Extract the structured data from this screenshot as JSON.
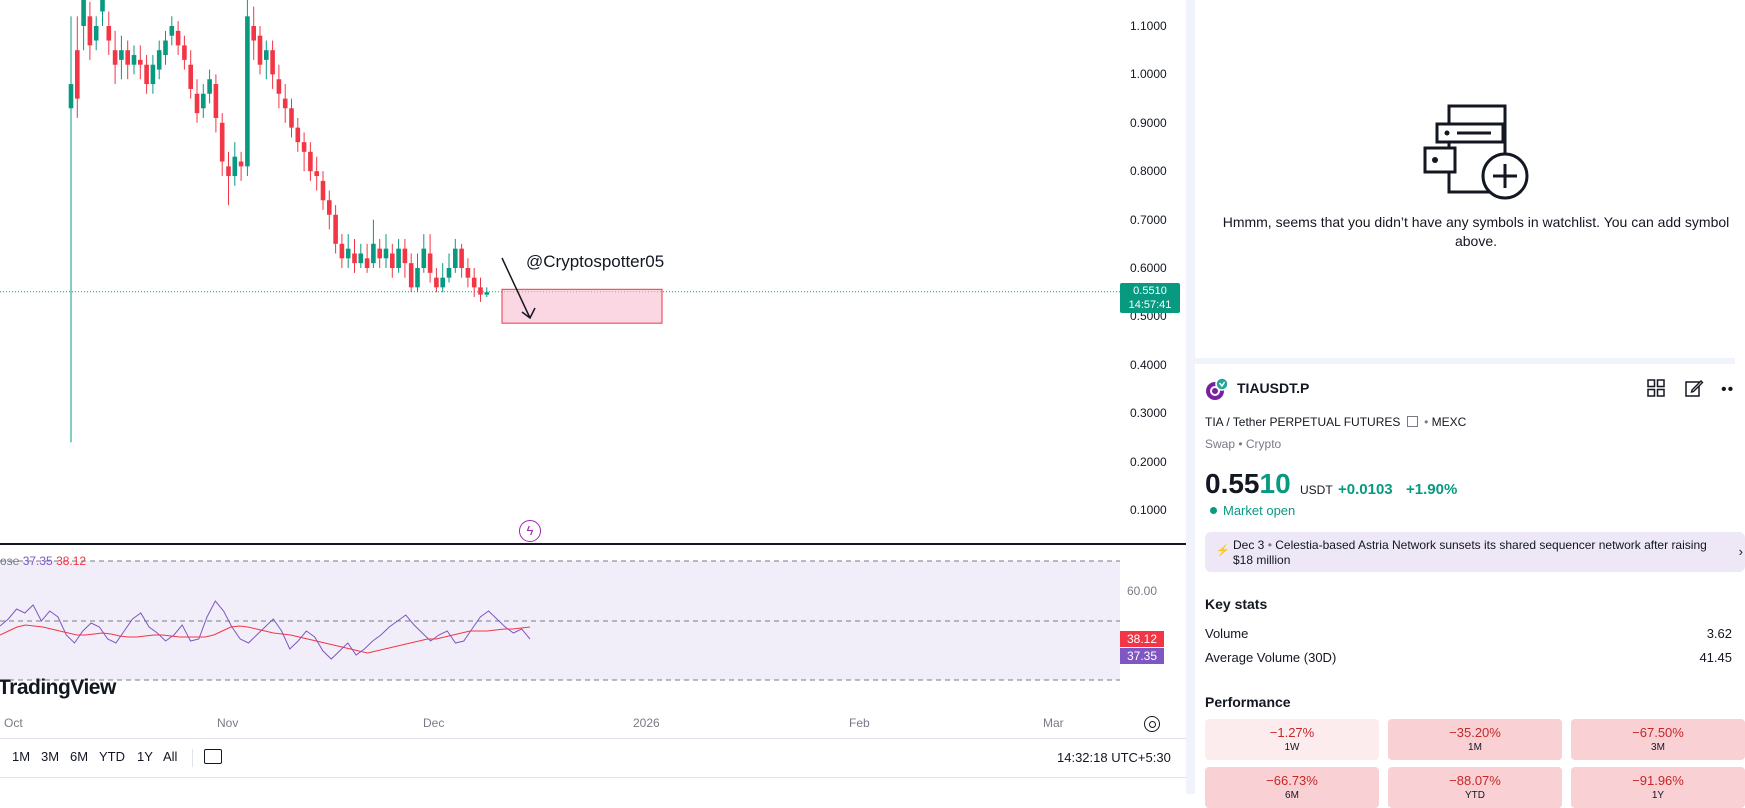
{
  "chart": {
    "price_axis": [
      "1.1000",
      "1.0000",
      "0.9000",
      "0.8000",
      "0.7000",
      "0.6000",
      "0.5000",
      "0.4000",
      "0.3000",
      "0.2000",
      "0.1000"
    ],
    "last_price": "0.5510",
    "countdown": "14:57:41",
    "annotation_text": "@Cryptospotter05",
    "up_color": "#089981",
    "down_color": "#f23645",
    "zone_color": "#f8bbd0"
  },
  "indicator": {
    "legend_prefix": "ose",
    "value_1": "37.35",
    "value_2": "38.12",
    "level_label": "60.00",
    "tag_1": "38.12",
    "tag_2": "37.35",
    "line_1_color": "#7e57c2",
    "line_2_color": "#f23645"
  },
  "brand": {
    "logo_text": "TradingView"
  },
  "time_axis": [
    "Oct",
    "Nov",
    "Dec",
    "2026",
    "Feb",
    "Mar"
  ],
  "bottom_bar": {
    "ranges": [
      "1M",
      "3M",
      "6M",
      "YTD",
      "1Y",
      "All"
    ],
    "clock": "14:32:18 UTC+5:30"
  },
  "watchlist": {
    "empty_message": "Hmmm, seems that you didn’t have any symbols in watchlist. You can add symbol above."
  },
  "symbol": {
    "ticker": "TIAUSDT.P",
    "description": "TIA / Tether PERPETUAL FUTURES",
    "exchange": "MEXC",
    "category": "Swap • Crypto",
    "price_main": "0.55",
    "price_tail": "10",
    "currency": "USDT",
    "change": "+0.0103",
    "change_pct": "+1.90%",
    "market_status": "Market open"
  },
  "news": {
    "date": "Dec 3",
    "headline": "Celestia-based Astria Network sunsets its shared sequencer network after raising $18 million"
  },
  "key_stats": {
    "title": "Key stats",
    "items": [
      {
        "label": "Volume",
        "value": "3.62"
      },
      {
        "label": "Average Volume (30D)",
        "value": "41.45"
      }
    ]
  },
  "performance": {
    "title": "Performance",
    "cells": [
      {
        "value": "−1.27%",
        "label": "1W",
        "bg": "#fdecee"
      },
      {
        "value": "−35.20%",
        "label": "1M",
        "bg": "#f9d0d4"
      },
      {
        "value": "−67.50%",
        "label": "3M",
        "bg": "#f9d0d4"
      },
      {
        "value": "−66.73%",
        "label": "6M",
        "bg": "#f9d0d4"
      },
      {
        "value": "−88.07%",
        "label": "YTD",
        "bg": "#f9d0d4"
      },
      {
        "value": "−91.96%",
        "label": "1Y",
        "bg": "#f9d0d4"
      }
    ]
  }
}
